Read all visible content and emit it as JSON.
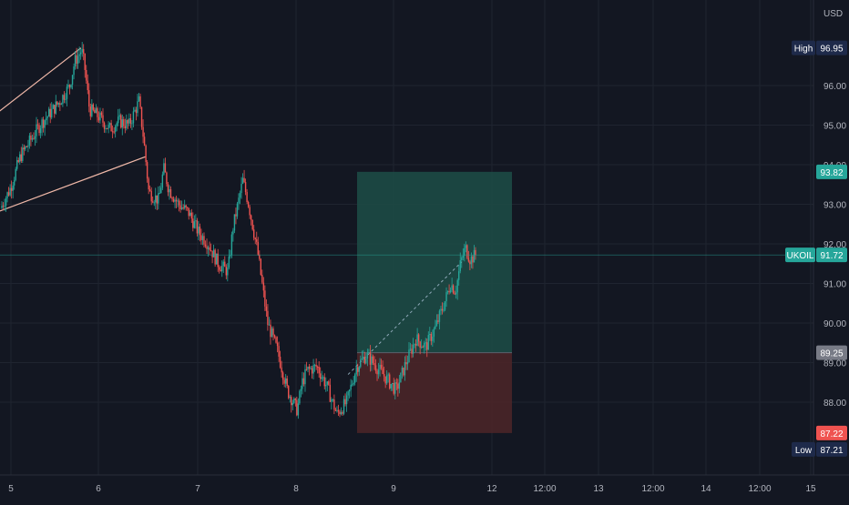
{
  "colors": {
    "background": "#131722",
    "grid": "#1f2430",
    "up": "#26a69a",
    "down": "#ef5350",
    "axis_text": "#b2b5be",
    "channel": "#f0b8a8",
    "target_zone": "#1d4a45",
    "stop_zone": "#4a2528",
    "high_low_badge": "#1e2a4a",
    "target_badge": "#26a69a",
    "entry_badge": "#787b86",
    "stop_badge": "#ef5350",
    "symbol_badge": "#26a69a"
  },
  "chart_data": {
    "type": "candlestick",
    "currency": "USD",
    "symbol": "UKOIL",
    "x_ticks": [
      "5",
      "6",
      "7",
      "8",
      "9",
      "12",
      "12:00",
      "13",
      "12:00",
      "14",
      "12:00",
      "15"
    ],
    "y_ticks": [
      "88.00",
      "89.00",
      "90.00",
      "91.00",
      "92.00",
      "93.00",
      "94.00",
      "95.00",
      "96.00"
    ],
    "ylim": [
      86.0,
      98.0
    ],
    "last_price": 91.72,
    "high": {
      "label": "High",
      "value": "96.95"
    },
    "low": {
      "label": "Low",
      "value": "87.21"
    },
    "position": {
      "target_label": "93.82",
      "entry_label": "89.25",
      "stop_label": "87.22",
      "target": 93.82,
      "entry": 89.25,
      "stop": 87.22
    },
    "price_path": [
      [
        0.0,
        92.9
      ],
      [
        0.1,
        93.4
      ],
      [
        0.2,
        94.2
      ],
      [
        0.3,
        94.6
      ],
      [
        0.4,
        95.0
      ],
      [
        0.5,
        95.3
      ],
      [
        0.6,
        95.6
      ],
      [
        0.7,
        96.0
      ],
      [
        0.75,
        96.6
      ],
      [
        0.82,
        96.9
      ],
      [
        0.85,
        96.5
      ],
      [
        0.9,
        95.4
      ],
      [
        1.0,
        95.2
      ],
      [
        1.1,
        94.9
      ],
      [
        1.2,
        95.1
      ],
      [
        1.3,
        95.0
      ],
      [
        1.4,
        95.6
      ],
      [
        1.45,
        94.6
      ],
      [
        1.5,
        93.3
      ],
      [
        1.6,
        93.1
      ],
      [
        1.65,
        93.9
      ],
      [
        1.7,
        93.4
      ],
      [
        1.8,
        93.0
      ],
      [
        1.9,
        92.8
      ],
      [
        2.0,
        92.3
      ],
      [
        2.1,
        92.0
      ],
      [
        2.2,
        91.5
      ],
      [
        2.3,
        91.3
      ],
      [
        2.35,
        92.4
      ],
      [
        2.45,
        93.6
      ],
      [
        2.5,
        93.1
      ],
      [
        2.6,
        91.8
      ],
      [
        2.7,
        90.0
      ],
      [
        2.8,
        89.3
      ],
      [
        2.9,
        88.3
      ],
      [
        3.0,
        87.8
      ],
      [
        3.05,
        88.5
      ],
      [
        3.1,
        88.8
      ],
      [
        3.2,
        88.9
      ],
      [
        3.3,
        88.4
      ],
      [
        3.4,
        87.7
      ],
      [
        3.5,
        88.0
      ],
      [
        3.6,
        88.9
      ],
      [
        3.7,
        89.2
      ],
      [
        3.8,
        88.9
      ],
      [
        3.9,
        88.6
      ],
      [
        4.0,
        88.3
      ],
      [
        4.1,
        89.0
      ],
      [
        4.2,
        89.6
      ],
      [
        4.3,
        89.4
      ],
      [
        4.4,
        89.9
      ],
      [
        4.5,
        90.6
      ],
      [
        4.55,
        91.0
      ],
      [
        4.6,
        90.8
      ],
      [
        4.65,
        91.5
      ],
      [
        4.7,
        91.9
      ],
      [
        4.75,
        91.6
      ],
      [
        4.8,
        91.72
      ]
    ],
    "channel_lines": [
      {
        "from": [
          -0.05,
          95.3
        ],
        "to": [
          0.8,
          96.95
        ]
      },
      {
        "from": [
          -0.05,
          92.8
        ],
        "to": [
          1.45,
          94.2
        ]
      }
    ],
    "projection_line": {
      "from": [
        3.5,
        88.7
      ],
      "to": [
        4.65,
        91.55
      ]
    },
    "position_range_x": [
      3.62,
      5.2
    ]
  }
}
